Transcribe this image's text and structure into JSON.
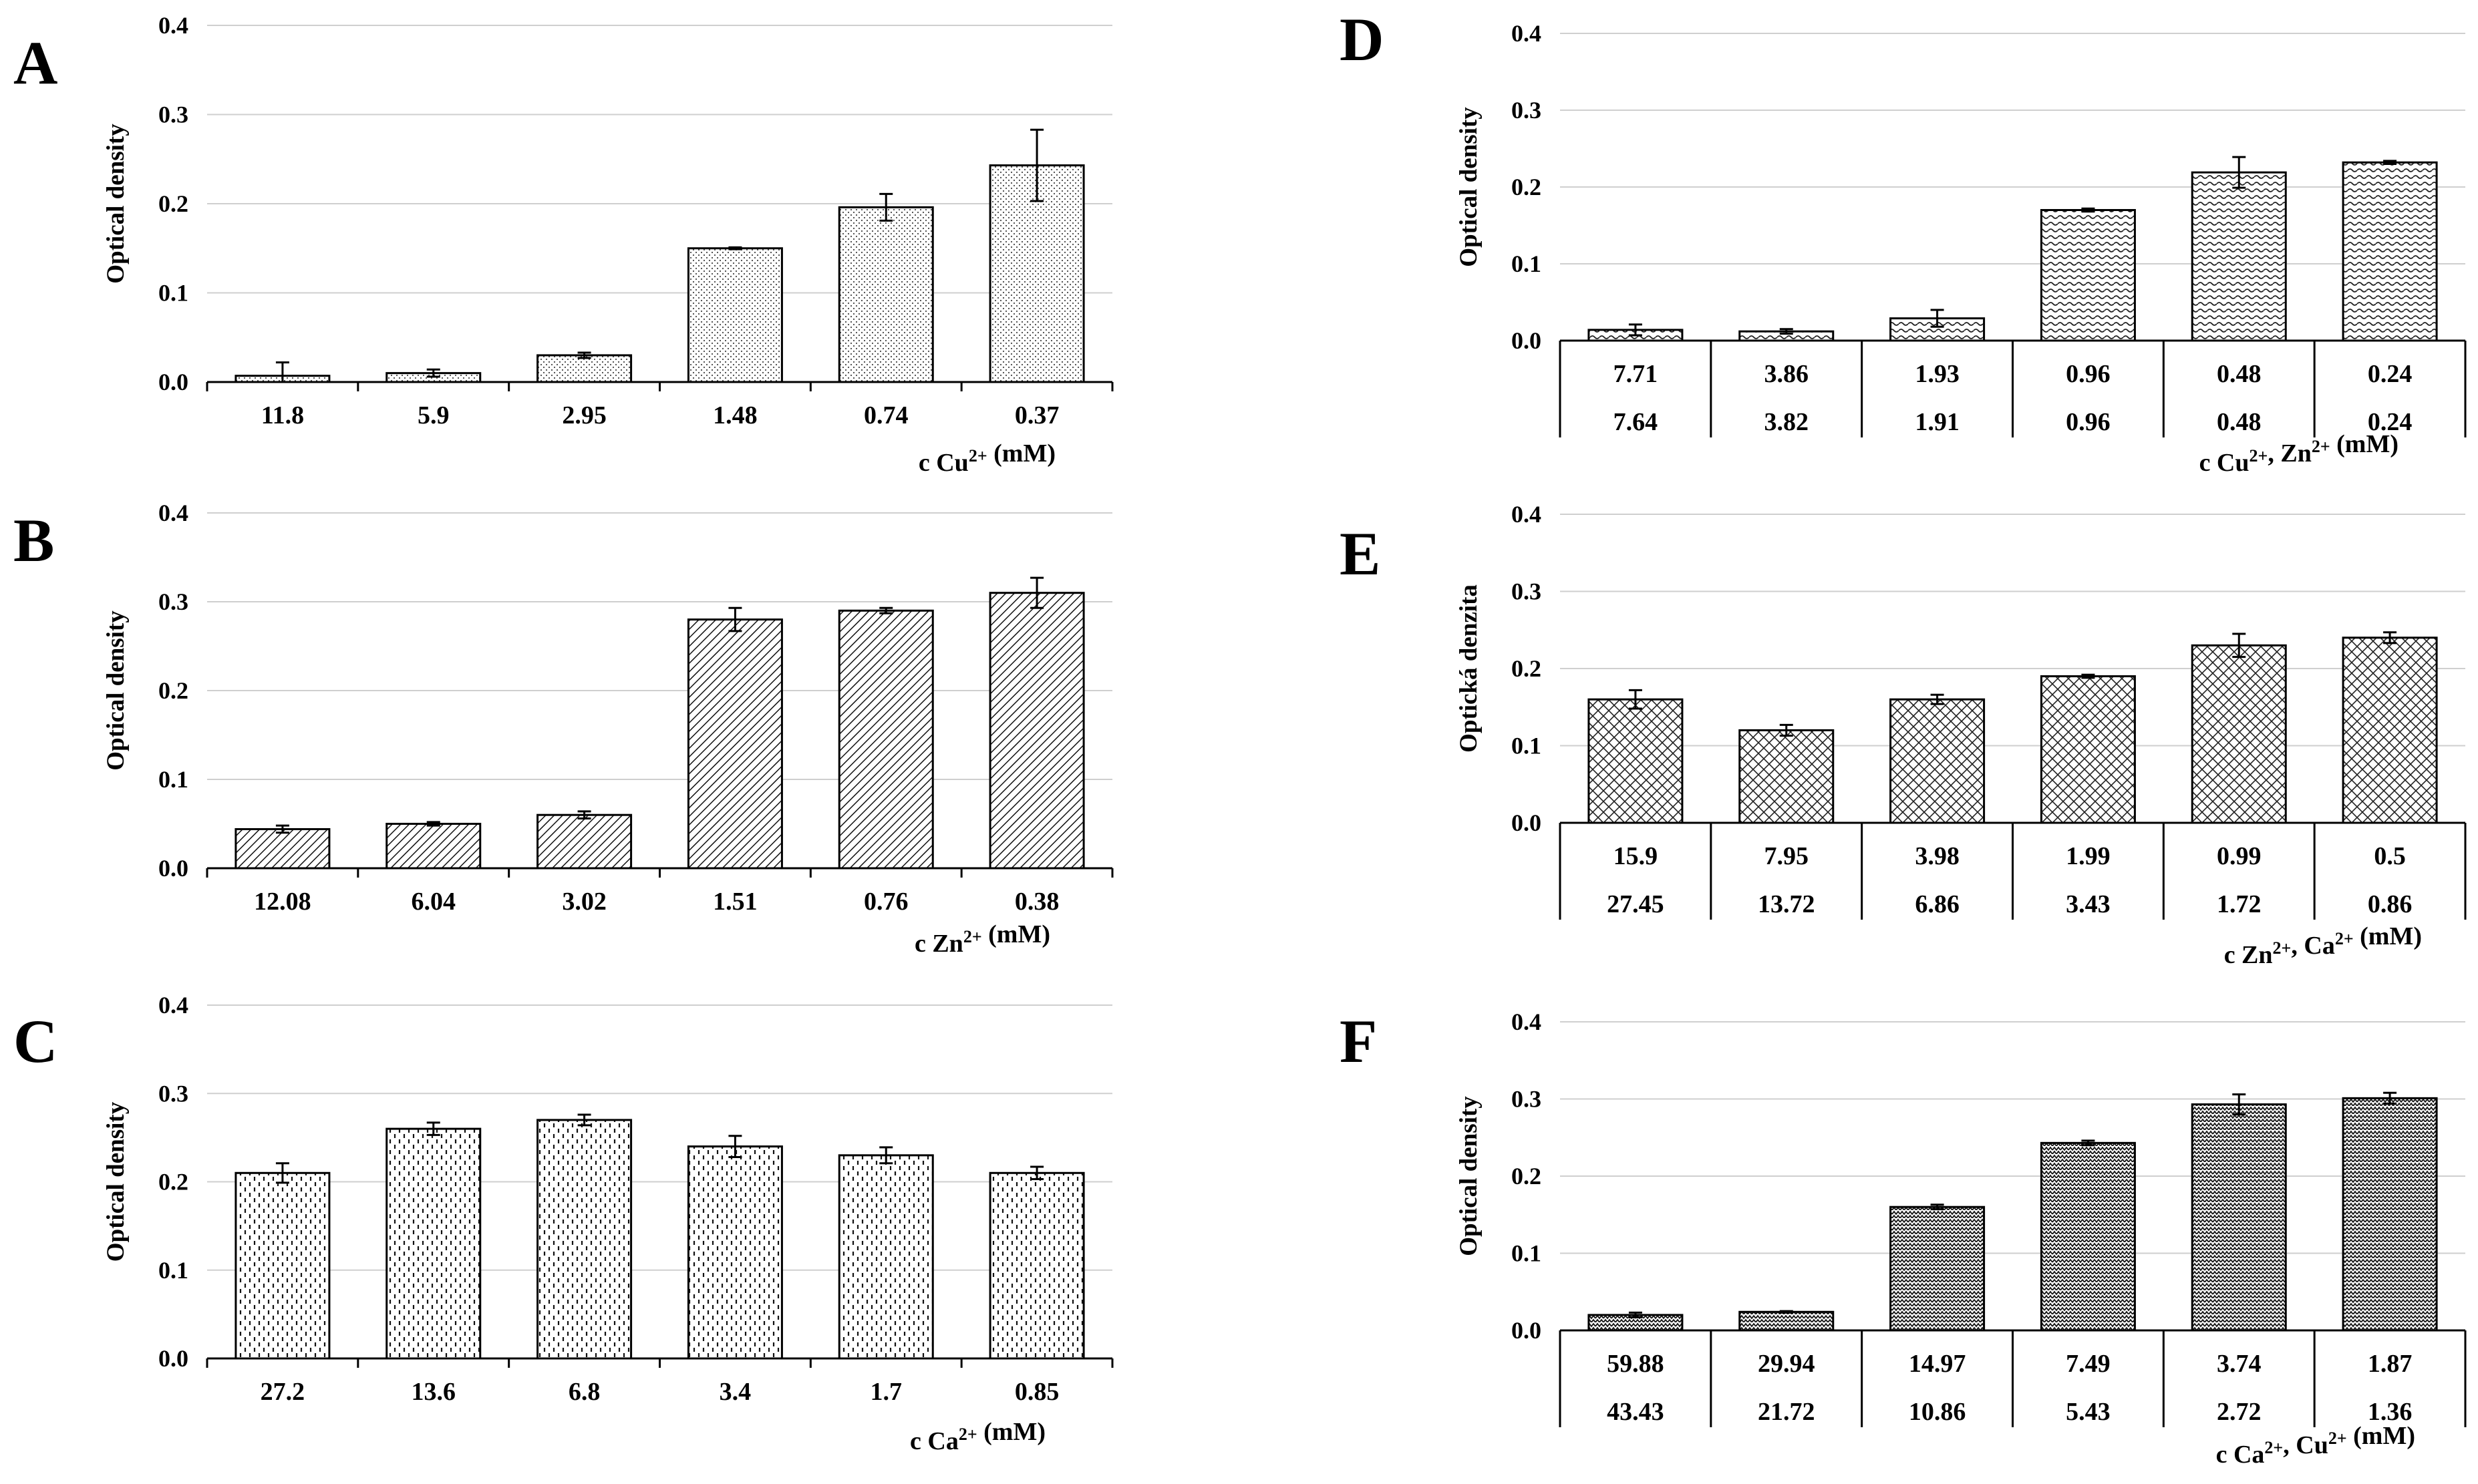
{
  "chart_data": [
    {
      "panel": "A",
      "type": "bar",
      "ylabel": "Optical density",
      "xlabel_text": "c Cu",
      "xlabel_sup": "2+",
      "xlabel_unit": " (mM)",
      "ylim": [
        0,
        0.4
      ],
      "yticks": [
        "0.0",
        "0.1",
        "0.2",
        "0.3",
        "0.4"
      ],
      "pattern": "dots",
      "categories": [
        "11.8",
        "5.9",
        "2.95",
        "1.48",
        "0.74",
        "0.37"
      ],
      "values": [
        0.007,
        0.01,
        0.03,
        0.15,
        0.196,
        0.243
      ],
      "errors": [
        0.015,
        0.004,
        0.003,
        0.001,
        0.015,
        0.04
      ]
    },
    {
      "panel": "B",
      "type": "bar",
      "ylabel": "Optical density",
      "xlabel_text": "c Zn",
      "xlabel_sup": "2+",
      "xlabel_unit": " (mM)",
      "ylim": [
        0,
        0.4
      ],
      "yticks": [
        "0.0",
        "0.1",
        "0.2",
        "0.3",
        "0.4"
      ],
      "pattern": "diag",
      "categories": [
        "12.08",
        "6.04",
        "3.02",
        "1.51",
        "0.76",
        "0.38"
      ],
      "values": [
        0.044,
        0.05,
        0.06,
        0.28,
        0.29,
        0.31
      ],
      "errors": [
        0.004,
        0.002,
        0.004,
        0.013,
        0.003,
        0.017
      ]
    },
    {
      "panel": "C",
      "type": "bar",
      "ylabel": "Optical density",
      "xlabel_text": "c Ca",
      "xlabel_sup": "2+",
      "xlabel_unit": " (mM)",
      "ylim": [
        0,
        0.4
      ],
      "yticks": [
        "0.0",
        "0.1",
        "0.2",
        "0.3",
        "0.4"
      ],
      "pattern": "dashes",
      "categories": [
        "27.2",
        "13.6",
        "6.8",
        "3.4",
        "1.7",
        "0.85"
      ],
      "values": [
        0.21,
        0.26,
        0.27,
        0.24,
        0.23,
        0.21
      ],
      "errors": [
        0.011,
        0.007,
        0.006,
        0.012,
        0.009,
        0.007
      ]
    },
    {
      "panel": "D",
      "type": "bar",
      "ylabel": "Optical density",
      "xlabel_text": "c Cu",
      "xlabel_sup": "2+",
      "xlabel_text2": ", Zn",
      "xlabel_sup2": "2+",
      "xlabel_unit": " (mM)",
      "ylim": [
        0,
        0.4
      ],
      "yticks": [
        "0.0",
        "0.1",
        "0.2",
        "0.3",
        "0.4"
      ],
      "pattern": "waves",
      "categories": [
        "7.71",
        "3.86",
        "1.93",
        "0.96",
        "0.48",
        "0.24"
      ],
      "categories2": [
        "7.64",
        "3.82",
        "1.91",
        "0.96",
        "0.48",
        "0.24"
      ],
      "values": [
        0.014,
        0.012,
        0.029,
        0.17,
        0.219,
        0.232
      ],
      "errors": [
        0.007,
        0.003,
        0.011,
        0.002,
        0.02,
        0.002
      ]
    },
    {
      "panel": "E",
      "type": "bar",
      "ylabel": "Optická denzita",
      "xlabel_text": "c Zn",
      "xlabel_sup": "2+",
      "xlabel_text2": ", Ca",
      "xlabel_sup2": "2+",
      "xlabel_unit": " (mM)",
      "ylim": [
        0,
        0.4
      ],
      "yticks": [
        "0.0",
        "0.1",
        "0.2",
        "0.3",
        "0.4"
      ],
      "pattern": "crosshatch",
      "categories": [
        "15.9",
        "7.95",
        "3.98",
        "1.99",
        "0.99",
        "0.5"
      ],
      "categories2": [
        "27.45",
        "13.72",
        "6.86",
        "3.43",
        "1.72",
        "0.86"
      ],
      "values": [
        0.16,
        0.12,
        0.16,
        0.19,
        0.23,
        0.24
      ],
      "errors": [
        0.012,
        0.007,
        0.006,
        0.002,
        0.015,
        0.007
      ]
    },
    {
      "panel": "F",
      "type": "bar",
      "ylabel": "Optical density",
      "xlabel_text": "c Ca",
      "xlabel_sup": "2+",
      "xlabel_text2": ", Cu",
      "xlabel_sup2": "2+",
      "xlabel_unit": " (mM)",
      "ylim": [
        0,
        0.4
      ],
      "yticks": [
        "0.0",
        "0.1",
        "0.2",
        "0.3",
        "0.4"
      ],
      "pattern": "zigzag",
      "categories": [
        "59.88",
        "29.94",
        "14.97",
        "7.49",
        "3.74",
        "1.87"
      ],
      "categories2": [
        "43.43",
        "21.72",
        "10.86",
        "5.43",
        "2.72",
        "1.36"
      ],
      "values": [
        0.02,
        0.024,
        0.16,
        0.243,
        0.293,
        0.301
      ],
      "errors": [
        0.003,
        0.001,
        0.003,
        0.003,
        0.013,
        0.007
      ]
    }
  ]
}
